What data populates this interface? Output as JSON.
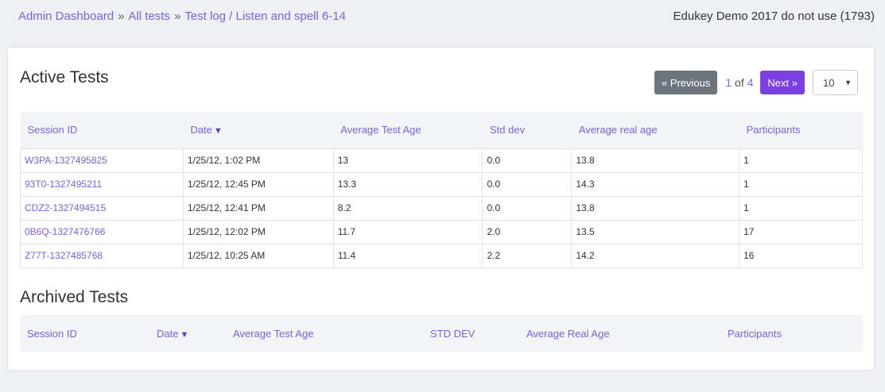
{
  "breadcrumb": {
    "items": [
      {
        "label": "Admin Dashboard"
      },
      {
        "label": "All tests"
      },
      {
        "label": "Test log / Listen and spell 6-14"
      }
    ],
    "separator": "»"
  },
  "org": {
    "name": "Edukey Demo 2017 do not use (1793)"
  },
  "active": {
    "title": "Active Tests",
    "pager": {
      "prev_label": "« Previous",
      "next_label": "Next »",
      "current_page": "1",
      "of_label": "of",
      "total_pages": "4",
      "page_size": "10"
    },
    "columns": [
      "Session ID",
      "Date",
      "Average Test Age",
      "Std dev",
      "Average real age",
      "Participants"
    ],
    "sort_indicator": "▼",
    "rows": [
      {
        "session": "W3PA-1327495825",
        "date": "1/25/12, 1:02 PM",
        "avg_test_age": "13",
        "std_dev": "0.0",
        "avg_real_age": "13.8",
        "participants": "1"
      },
      {
        "session": "93T0-1327495211",
        "date": "1/25/12, 12:45 PM",
        "avg_test_age": "13.3",
        "std_dev": "0.0",
        "avg_real_age": "14.3",
        "participants": "1"
      },
      {
        "session": "CDZ2-1327494515",
        "date": "1/25/12, 12:41 PM",
        "avg_test_age": "8.2",
        "std_dev": "0.0",
        "avg_real_age": "13.8",
        "participants": "1"
      },
      {
        "session": "0B6Q-1327476766",
        "date": "1/25/12, 12:02 PM",
        "avg_test_age": "11.7",
        "std_dev": "2.0",
        "avg_real_age": "13.5",
        "participants": "17"
      },
      {
        "session": "Z77T-1327485768",
        "date": "1/25/12, 10:25 AM",
        "avg_test_age": "11.4",
        "std_dev": "2.2",
        "avg_real_age": "14.2",
        "participants": "16"
      }
    ]
  },
  "archived": {
    "title": "Archived Tests",
    "columns": [
      "Session ID",
      "Date",
      "Average Test Age",
      "STD DEV",
      "Average Real Age",
      "Participants"
    ],
    "sort_indicator": "▼"
  }
}
